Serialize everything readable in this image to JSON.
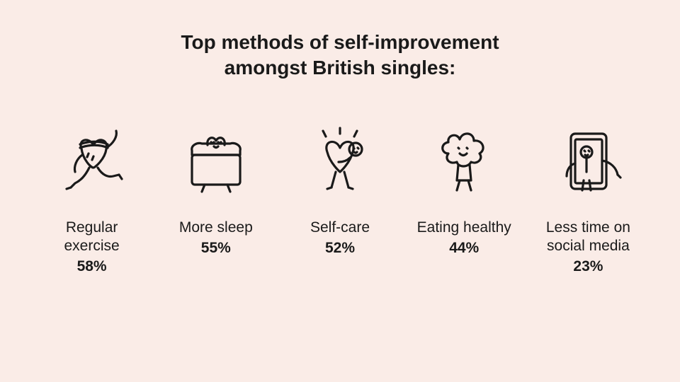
{
  "infographic": {
    "type": "infographic",
    "background_color": "#faece7",
    "text_color": "#1a1a1a",
    "stroke_color": "#1a1a1a",
    "title": "Top methods of self-improvement\namongst British singles:",
    "title_fontsize": 28,
    "title_fontweight": 700,
    "label_fontsize": 21,
    "label_fontweight": 400,
    "value_fontsize": 21,
    "value_fontweight": 700,
    "icon_stroke_width": 3.2,
    "items": [
      {
        "icon": "exercise-heart-icon",
        "label": "Regular exercise",
        "value": "58%"
      },
      {
        "icon": "sleep-heart-icon",
        "label": "More sleep",
        "value": "55%"
      },
      {
        "icon": "selfcare-heart-icon",
        "label": "Self-care",
        "value": "52%"
      },
      {
        "icon": "broccoli-icon",
        "label": "Eating healthy",
        "value": "44%"
      },
      {
        "icon": "phone-figure-icon",
        "label": "Less time on social media",
        "value": "23%"
      }
    ]
  }
}
